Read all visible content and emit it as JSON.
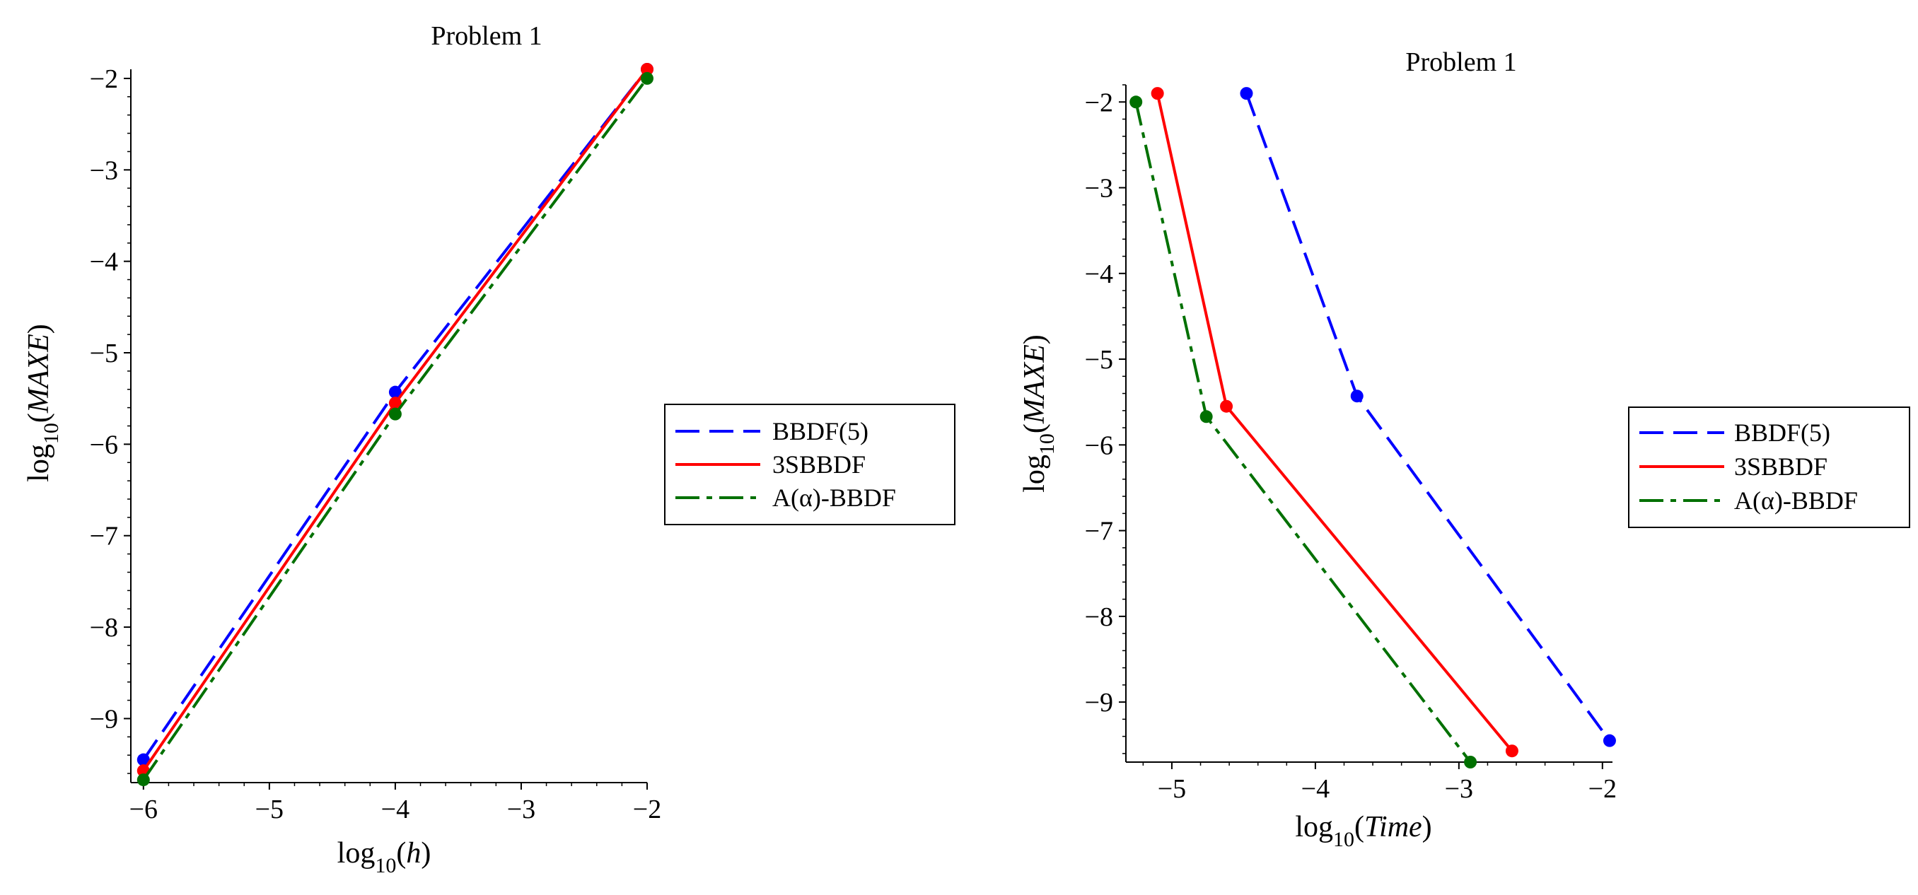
{
  "chart_data": [
    {
      "type": "line",
      "title": "Problem 1",
      "xlabel": {
        "prefix": "log",
        "sub": "10",
        "arg": "h"
      },
      "ylabel": {
        "prefix": "log",
        "sub": "10",
        "arg": "MAXE"
      },
      "xlim": [
        -6.1,
        -2
      ],
      "ylim": [
        -9.7,
        -1.9
      ],
      "xticks": [
        -6,
        -5,
        -4,
        -3,
        -2
      ],
      "yticks": [
        -2,
        -3,
        -4,
        -5,
        -6,
        -7,
        -8,
        -9
      ],
      "xtick_labels": [
        "−6",
        "−5",
        "−4",
        "−3",
        "−2"
      ],
      "ytick_labels": [
        "−2",
        "−3",
        "−4",
        "−5",
        "−6",
        "−7",
        "−8",
        "−9"
      ],
      "legend_position": "right",
      "series": [
        {
          "name": "BBDF(5)",
          "color": "#0000ff",
          "dash": "long-dash",
          "x": [
            -6,
            -4,
            -2
          ],
          "y": [
            -9.45,
            -5.43,
            -1.9
          ]
        },
        {
          "name": "3SBBDF",
          "color": "#ff0000",
          "dash": "solid",
          "x": [
            -6,
            -4,
            -2
          ],
          "y": [
            -9.57,
            -5.55,
            -1.9
          ]
        },
        {
          "name": "A(α)-BBDF",
          "color": "#007000",
          "dash": "dash-dot",
          "x": [
            -6,
            -4,
            -2
          ],
          "y": [
            -9.67,
            -5.67,
            -2.0
          ]
        }
      ]
    },
    {
      "type": "line",
      "title": "Problem 1",
      "xlabel": {
        "prefix": "log",
        "sub": "10",
        "arg": "Time"
      },
      "ylabel": {
        "prefix": "log",
        "sub": "10",
        "arg": "MAXE"
      },
      "xlim": [
        -5.32,
        -1.93
      ],
      "ylim": [
        -9.7,
        -1.8
      ],
      "xticks": [
        -5,
        -4,
        -3,
        -2
      ],
      "yticks": [
        -2,
        -3,
        -4,
        -5,
        -6,
        -7,
        -8,
        -9
      ],
      "xtick_labels": [
        "−5",
        "−4",
        "−3",
        "−2"
      ],
      "ytick_labels": [
        "−2",
        "−3",
        "−4",
        "−5",
        "−6",
        "−7",
        "−8",
        "−9"
      ],
      "legend_position": "right",
      "series": [
        {
          "name": "BBDF(5)",
          "color": "#0000ff",
          "dash": "long-dash",
          "x": [
            -4.48,
            -3.71,
            -1.95
          ],
          "y": [
            -1.9,
            -5.43,
            -9.45
          ]
        },
        {
          "name": "3SBBDF",
          "color": "#ff0000",
          "dash": "solid",
          "x": [
            -5.1,
            -4.62,
            -2.63
          ],
          "y": [
            -1.9,
            -5.55,
            -9.57
          ]
        },
        {
          "name": "A(α)-BBDF",
          "color": "#007000",
          "dash": "dash-dot",
          "x": [
            -5.25,
            -4.76,
            -2.92
          ],
          "y": [
            -2.0,
            -5.67,
            -9.7
          ]
        }
      ]
    }
  ]
}
